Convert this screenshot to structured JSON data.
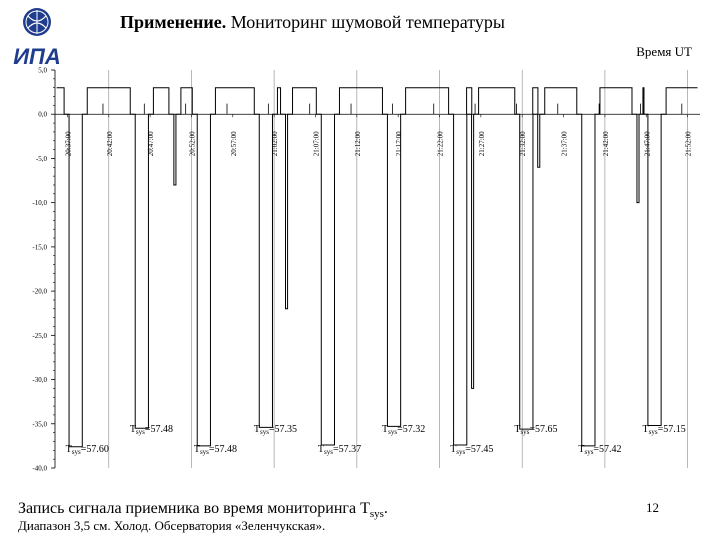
{
  "header": {
    "title_bold": "Применение.",
    "title_rest": " Мониторинг шумовой температуры",
    "logo_text": "ИПА"
  },
  "time_axis_label": "Время UT",
  "caption": {
    "main": "Запись сигнала приемника во время мониторинга T",
    "sub": "sys",
    "end": ".",
    "footnote": "Диапазон 3,5 см. Холод. Обсерватория «Зеленчукская»."
  },
  "page_number": "12",
  "chart_data": {
    "type": "line",
    "ylim": [
      -40,
      5
    ],
    "yticks": [
      5.0,
      0.0,
      -5.0,
      -10.0,
      -15.0,
      -20.0,
      -25.0,
      -30.0,
      -35.0,
      -40.0
    ],
    "ytick_labels": [
      "5,0",
      "0,0",
      "-5,0",
      "-10,0",
      "-15,0",
      "-20,0",
      "-25,0",
      "-30,0",
      "-35,0",
      "-40,0"
    ],
    "time_ticks": [
      "20:37:00",
      "20:42:00",
      "20:47:00",
      "20:52:00",
      "20:57:00",
      "21:02:00",
      "21:07:00",
      "21:12:00",
      "21:17:00",
      "21:22:00",
      "21:27:00",
      "21:32:00",
      "21:37:00",
      "21:42:00",
      "21:47:00",
      "21:52:00"
    ],
    "baseline": 0.0,
    "high_level": 3.0,
    "deep_dips": [
      {
        "time": "20:38:00",
        "value": -37.6,
        "label": "Tsys=57.60"
      },
      {
        "time": "20:46:00",
        "value": -35.5,
        "label": "Tsys=57.48"
      },
      {
        "time": "20:53:30",
        "value": -37.5,
        "label": "Tsys=57.48"
      },
      {
        "time": "21:01:00",
        "value": -35.4,
        "label": "Tsys=57.35"
      },
      {
        "time": "21:08:30",
        "value": -37.4,
        "label": "Tsys=57.37"
      },
      {
        "time": "21:16:30",
        "value": -35.3,
        "label": "Tsys=57.32"
      },
      {
        "time": "21:24:30",
        "value": -37.4,
        "label": "Tsys=57.45"
      },
      {
        "time": "21:32:30",
        "value": -35.6,
        "label": "Tsys=57.65"
      },
      {
        "time": "21:40:00",
        "value": -37.5,
        "label": "Tsys=57.42"
      },
      {
        "time": "21:48:00",
        "value": -35.2,
        "label": "Tsys=57.15"
      }
    ],
    "partial_dips": [
      {
        "time": "20:50:00",
        "value": -8.0
      },
      {
        "time": "21:03:30",
        "value": -22.0
      },
      {
        "time": "21:26:00",
        "value": -31.0
      },
      {
        "time": "21:34:00",
        "value": -6.0
      },
      {
        "time": "21:46:00",
        "value": -10.0
      }
    ]
  }
}
